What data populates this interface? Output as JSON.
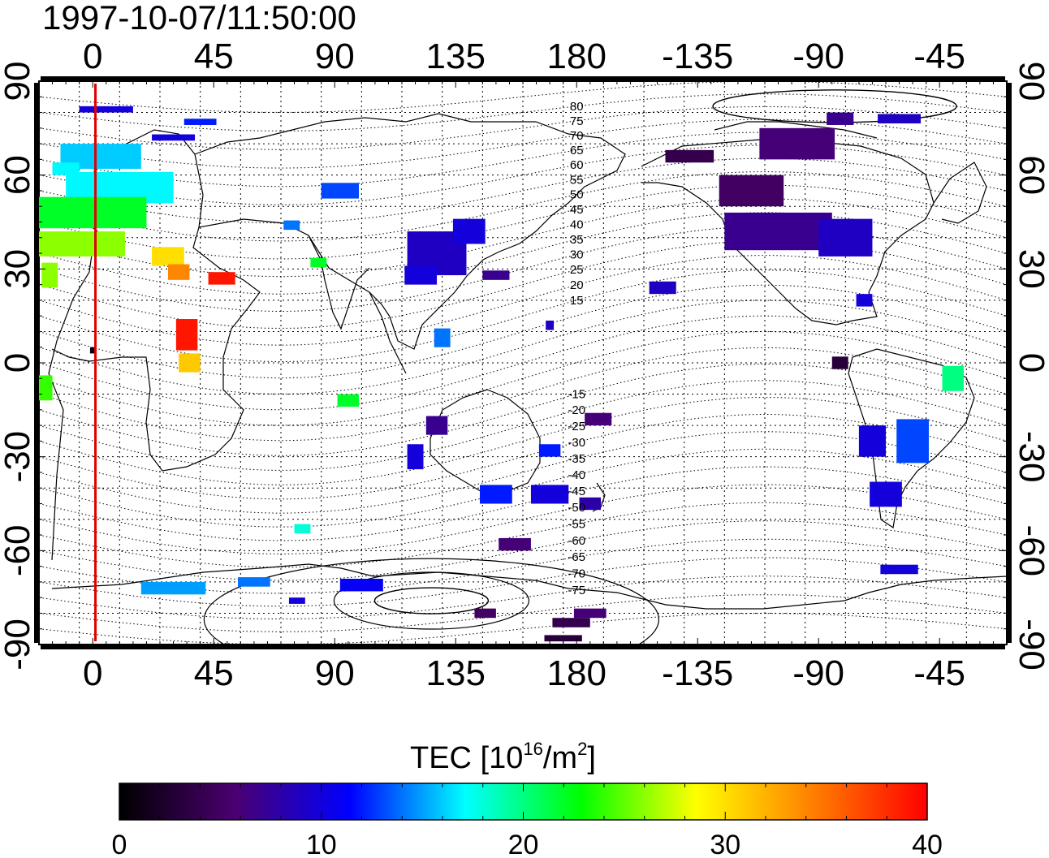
{
  "timestamp": "1997-10-07/11:50:00",
  "map": {
    "x_tick_labels": [
      "0",
      "45",
      "90",
      "135",
      "180",
      "-135",
      "-90",
      "-45"
    ],
    "y_tick_labels": [
      "90",
      "60",
      "30",
      "0",
      "-30",
      "-60",
      "-90"
    ],
    "lon_range": [
      -20,
      340
    ],
    "lat_range": [
      -90,
      90
    ],
    "marker_line_longitude": 1,
    "marker_line_color": "#e00000",
    "contour_labels_north": [
      "80",
      "75",
      "70",
      "65",
      "60",
      "55",
      "50",
      "45",
      "40",
      "35",
      "30",
      "25",
      "20",
      "15"
    ],
    "contour_labels_south": [
      "-15",
      "-20",
      "-25",
      "-30",
      "-35",
      "-40",
      "-45",
      "-50",
      "-55",
      "-60",
      "-65",
      "-70",
      "-75"
    ]
  },
  "colorbar": {
    "title_main": "TEC  [10",
    "title_sup1": "16",
    "title_mid": "/m",
    "title_sup2": "2",
    "title_end": "]",
    "tick_labels": [
      "0",
      "10",
      "20",
      "30",
      "40"
    ],
    "range": [
      0,
      40
    ],
    "colors": [
      "#000000",
      "#4a0070",
      "#0000ff",
      "#00ffff",
      "#00ff00",
      "#ffff00",
      "#ff8000",
      "#ff0000"
    ]
  },
  "tec_data": [
    {
      "lon": 5,
      "lat": 81,
      "w": 20,
      "h": 2,
      "v": 10
    },
    {
      "lon": 30,
      "lat": 72,
      "w": 16,
      "h": 2,
      "v": 10
    },
    {
      "lon": 40,
      "lat": 77,
      "w": 12,
      "h": 2,
      "v": 12
    },
    {
      "lon": 3,
      "lat": 66,
      "w": 30,
      "h": 8,
      "v": 16
    },
    {
      "lon": 10,
      "lat": 56,
      "w": 40,
      "h": 10,
      "v": 17
    },
    {
      "lon": -10,
      "lat": 62,
      "w": 10,
      "h": 4,
      "v": 17
    },
    {
      "lon": 0,
      "lat": 48,
      "w": 40,
      "h": 10,
      "v": 22
    },
    {
      "lon": -6,
      "lat": 38,
      "w": 36,
      "h": 8,
      "v": 26
    },
    {
      "lon": 28,
      "lat": 34,
      "w": 12,
      "h": 6,
      "v": 30
    },
    {
      "lon": 32,
      "lat": 29,
      "w": 8,
      "h": 5,
      "v": 34
    },
    {
      "lon": 48,
      "lat": 27,
      "w": 10,
      "h": 4,
      "v": 39
    },
    {
      "lon": 35,
      "lat": 9,
      "w": 8,
      "h": 10,
      "v": 39
    },
    {
      "lon": 36,
      "lat": 0,
      "w": 8,
      "h": 6,
      "v": 31
    },
    {
      "lon": -16,
      "lat": 28,
      "w": 6,
      "h": 8,
      "v": 26
    },
    {
      "lon": -18,
      "lat": -8,
      "w": 6,
      "h": 8,
      "v": 24
    },
    {
      "lon": 0,
      "lat": 4,
      "w": 2,
      "h": 2,
      "v": 1
    },
    {
      "lon": 84,
      "lat": 32,
      "w": 6,
      "h": 3,
      "v": 22
    },
    {
      "lon": 92,
      "lat": 55,
      "w": 14,
      "h": 5,
      "v": 13
    },
    {
      "lon": 74,
      "lat": 44,
      "w": 6,
      "h": 3,
      "v": 14
    },
    {
      "lon": 95,
      "lat": -12,
      "w": 8,
      "h": 4,
      "v": 22
    },
    {
      "lon": 128,
      "lat": 35,
      "w": 22,
      "h": 14,
      "v": 9
    },
    {
      "lon": 140,
      "lat": 42,
      "w": 12,
      "h": 8,
      "v": 10
    },
    {
      "lon": 122,
      "lat": 28,
      "w": 12,
      "h": 6,
      "v": 10
    },
    {
      "lon": 150,
      "lat": 28,
      "w": 10,
      "h": 3,
      "v": 7
    },
    {
      "lon": 130,
      "lat": 8,
      "w": 6,
      "h": 6,
      "v": 14
    },
    {
      "lon": 170,
      "lat": 12,
      "w": 3,
      "h": 3,
      "v": 9
    },
    {
      "lon": 120,
      "lat": -30,
      "w": 6,
      "h": 8,
      "v": 10
    },
    {
      "lon": 128,
      "lat": -20,
      "w": 8,
      "h": 6,
      "v": 7
    },
    {
      "lon": 150,
      "lat": -42,
      "w": 12,
      "h": 6,
      "v": 12
    },
    {
      "lon": 170,
      "lat": -42,
      "w": 14,
      "h": 6,
      "v": 10
    },
    {
      "lon": 185,
      "lat": -45,
      "w": 8,
      "h": 4,
      "v": 8
    },
    {
      "lon": 157,
      "lat": -58,
      "w": 12,
      "h": 4,
      "v": 6
    },
    {
      "lon": 170,
      "lat": -28,
      "w": 8,
      "h": 4,
      "v": 12
    },
    {
      "lon": 188,
      "lat": -18,
      "w": 10,
      "h": 4,
      "v": 6
    },
    {
      "lon": 78,
      "lat": -53,
      "w": 6,
      "h": 3,
      "v": 18
    },
    {
      "lon": 30,
      "lat": -72,
      "w": 24,
      "h": 4,
      "v": 15
    },
    {
      "lon": 60,
      "lat": -70,
      "w": 12,
      "h": 3,
      "v": 14
    },
    {
      "lon": 76,
      "lat": -76,
      "w": 6,
      "h": 2,
      "v": 10
    },
    {
      "lon": 100,
      "lat": -71,
      "w": 16,
      "h": 4,
      "v": 11
    },
    {
      "lon": 146,
      "lat": -80,
      "w": 8,
      "h": 3,
      "v": 5
    },
    {
      "lon": 178,
      "lat": -83,
      "w": 14,
      "h": 3,
      "v": 4
    },
    {
      "lon": 185,
      "lat": -80,
      "w": 12,
      "h": 3,
      "v": 6
    },
    {
      "lon": 175,
      "lat": -88,
      "w": 14,
      "h": 2,
      "v": 3
    },
    {
      "lon": 222,
      "lat": 66,
      "w": 18,
      "h": 4,
      "v": 4
    },
    {
      "lon": 245,
      "lat": 55,
      "w": 24,
      "h": 10,
      "v": 5
    },
    {
      "lon": 255,
      "lat": 42,
      "w": 40,
      "h": 12,
      "v": 7
    },
    {
      "lon": 280,
      "lat": 40,
      "w": 20,
      "h": 12,
      "v": 9
    },
    {
      "lon": 262,
      "lat": 70,
      "w": 28,
      "h": 10,
      "v": 6
    },
    {
      "lon": 278,
      "lat": 78,
      "w": 10,
      "h": 4,
      "v": 7
    },
    {
      "lon": 300,
      "lat": 78,
      "w": 16,
      "h": 3,
      "v": 9
    },
    {
      "lon": 212,
      "lat": 24,
      "w": 10,
      "h": 4,
      "v": 9
    },
    {
      "lon": 287,
      "lat": 20,
      "w": 6,
      "h": 4,
      "v": 10
    },
    {
      "lon": 278,
      "lat": 0,
      "w": 6,
      "h": 4,
      "v": 3
    },
    {
      "lon": 290,
      "lat": -25,
      "w": 10,
      "h": 10,
      "v": 10
    },
    {
      "lon": 305,
      "lat": -25,
      "w": 12,
      "h": 14,
      "v": 13
    },
    {
      "lon": 295,
      "lat": -42,
      "w": 12,
      "h": 8,
      "v": 10
    },
    {
      "lon": 320,
      "lat": -5,
      "w": 8,
      "h": 8,
      "v": 20
    },
    {
      "lon": 300,
      "lat": -66,
      "w": 14,
      "h": 3,
      "v": 10
    }
  ]
}
